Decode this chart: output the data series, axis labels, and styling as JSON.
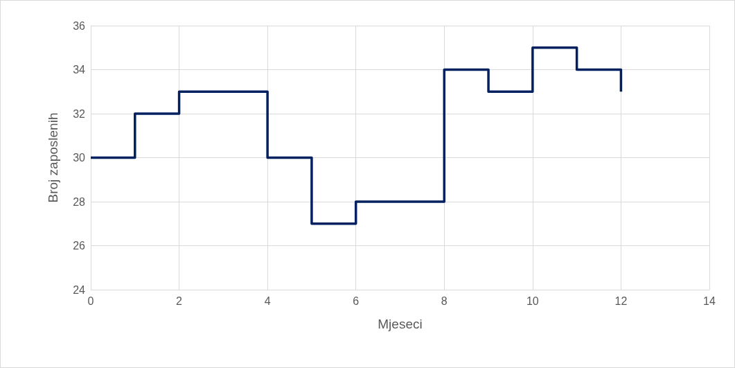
{
  "chart_data": {
    "type": "step",
    "xlabel": "Mjeseci",
    "ylabel": "Broj zaposlenih",
    "x": [
      0,
      1,
      2,
      3,
      4,
      5,
      6,
      7,
      8,
      9,
      10,
      11,
      12
    ],
    "series": [
      {
        "color": "#002060",
        "values": [
          30,
          32,
          33,
          33,
          30,
          27,
          28,
          28,
          34,
          33,
          35,
          34,
          33
        ]
      }
    ],
    "xlim": [
      0,
      14
    ],
    "xticks": [
      0,
      2,
      4,
      6,
      8,
      10,
      12,
      14
    ],
    "ylim": [
      24,
      36
    ],
    "yticks": [
      24,
      26,
      28,
      30,
      32,
      34,
      36
    ],
    "grid": true,
    "marker": "none",
    "line_style": "solid"
  }
}
